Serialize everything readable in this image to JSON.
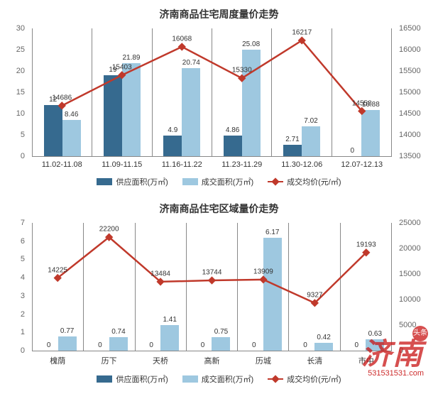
{
  "chart1": {
    "title": "济南商品住宅周度量价走势",
    "type": "bar+line",
    "categories": [
      "11.02-11.08",
      "11.09-11.15",
      "11.16-11.22",
      "11.23-11.29",
      "11.30-12.06",
      "12.07-12.13"
    ],
    "series_bar1": {
      "name": "供应面积(万㎡)",
      "color": "#366a8f",
      "values": [
        12,
        19,
        4.9,
        4.86,
        2.71,
        0
      ]
    },
    "series_bar2": {
      "name": "成交面积(万㎡)",
      "color": "#9ec8e0",
      "values": [
        8.46,
        21.89,
        20.74,
        25.08,
        7.02,
        10.88
      ]
    },
    "series_line": {
      "name": "成交均价(元/㎡)",
      "color": "#c0392b",
      "values": [
        14686,
        15403,
        16068,
        15330,
        16217,
        14558
      ]
    },
    "y_left": {
      "min": 0,
      "max": 30,
      "step": 5
    },
    "y_right": {
      "min": 13500,
      "max": 16500,
      "step": 500
    },
    "bg": "#ffffff",
    "axis_color": "#888888",
    "label_fontsize": 11,
    "title_fontsize": 14
  },
  "chart2": {
    "title": "济南商品住宅区域量价走势",
    "type": "bar+line",
    "categories": [
      "槐荫",
      "历下",
      "天桥",
      "高新",
      "历城",
      "长清",
      "市中"
    ],
    "series_bar1": {
      "name": "供应面积(万㎡)",
      "color": "#366a8f",
      "values": [
        0,
        0,
        0,
        0,
        0,
        0,
        0
      ]
    },
    "series_bar2": {
      "name": "成交面积(万㎡)",
      "color": "#9ec8e0",
      "values": [
        0.77,
        0.74,
        1.41,
        0.75,
        6.17,
        0.42,
        0.63
      ]
    },
    "series_line": {
      "name": "成交均价(元/㎡)",
      "color": "#c0392b",
      "values": [
        14225,
        22200,
        13484,
        13744,
        13909,
        9327,
        19193
      ]
    },
    "y_left": {
      "min": 0,
      "max": 7,
      "step": 1
    },
    "y_right": {
      "min": 0,
      "max": 25000,
      "step": 5000
    },
    "bg": "#ffffff",
    "axis_color": "#888888",
    "label_fontsize": 11,
    "title_fontsize": 14
  },
  "legend": {
    "bar1": "供应面积(万㎡)",
    "bar2": "成交面积(万㎡)",
    "line": "成交均价(元/㎡)"
  },
  "watermark": {
    "text": "济南",
    "badge": "头条",
    "url": "531531531.com"
  }
}
